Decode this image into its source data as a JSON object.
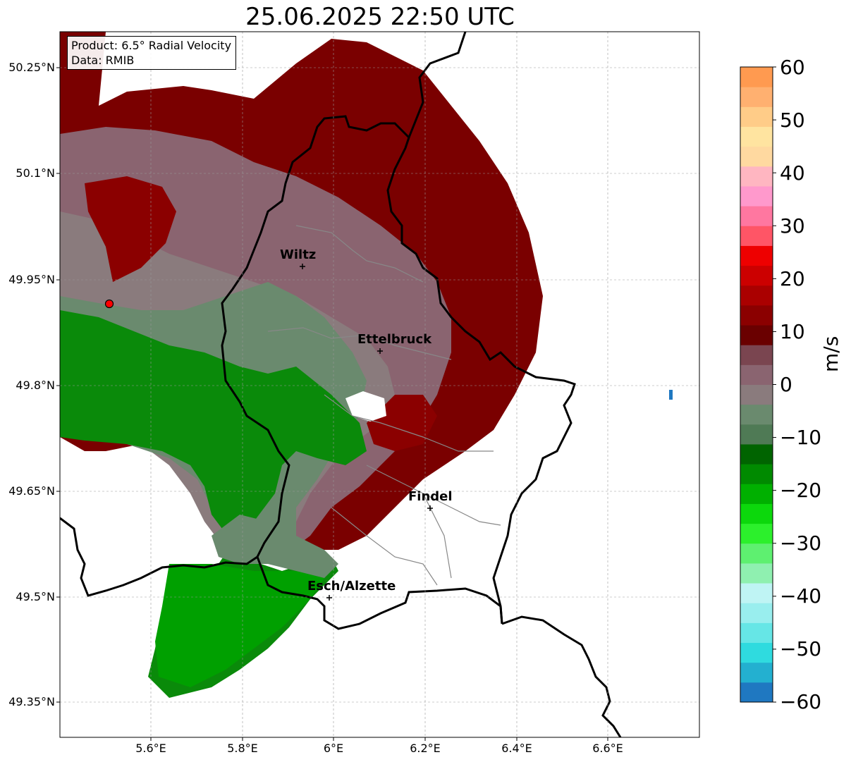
{
  "title": "25.06.2025 22:50 UTC",
  "product_box": {
    "line1": "Product: 6.5° Radial Velocity",
    "line2": "Data: RMIB"
  },
  "lat_ticks": [
    "50.25°N",
    "50.1°N",
    "49.95°N",
    "49.8°N",
    "49.65°N",
    "49.5°N",
    "49.35°N"
  ],
  "lon_ticks": [
    "5.6°E",
    "5.8°E",
    "6°E",
    "6.2°E",
    "6.4°E",
    "6.6°E"
  ],
  "cities": [
    {
      "name": "Wiltz"
    },
    {
      "name": "Ettelbruck"
    },
    {
      "name": "Findel"
    },
    {
      "name": "Esch/Alzette"
    }
  ],
  "colorbar": {
    "unit": "m/s",
    "ticks": [
      "60",
      "50",
      "40",
      "30",
      "20",
      "10",
      "0",
      "−10",
      "−20",
      "−30",
      "−40",
      "−50",
      "−60"
    ],
    "range": [
      -60,
      60
    ],
    "colors": [
      "#1f78c1",
      "#23b0d0",
      "#2fdbdf",
      "#66e6e6",
      "#99eeee",
      "#bff4f4",
      "#8ff0b0",
      "#5ef070",
      "#2cf02c",
      "#0cd80c",
      "#00b000",
      "#008a00",
      "#006400",
      "#4f7a55",
      "#6a8a6e",
      "#8a7b7d",
      "#8a6470",
      "#7a4550",
      "#6a0000",
      "#8b0000",
      "#aa0000",
      "#cc0000",
      "#ee0000",
      "#ff5566",
      "#ff77a0",
      "#ff99cc",
      "#ffb6c1",
      "#ffd9a0",
      "#ffe4a0",
      "#ffcc88",
      "#ffb070",
      "#ff9a50"
    ]
  },
  "radar_site": {
    "color": "#ff0000"
  },
  "map_colors": {
    "deep_red": "#7a0000",
    "red": "#8b0000",
    "mauve": "#8a6470",
    "gray_mauve": "#8a7b7d",
    "gray_green": "#6a8a6e",
    "green": "#0a8a0a",
    "bright_green": "#00a000"
  }
}
